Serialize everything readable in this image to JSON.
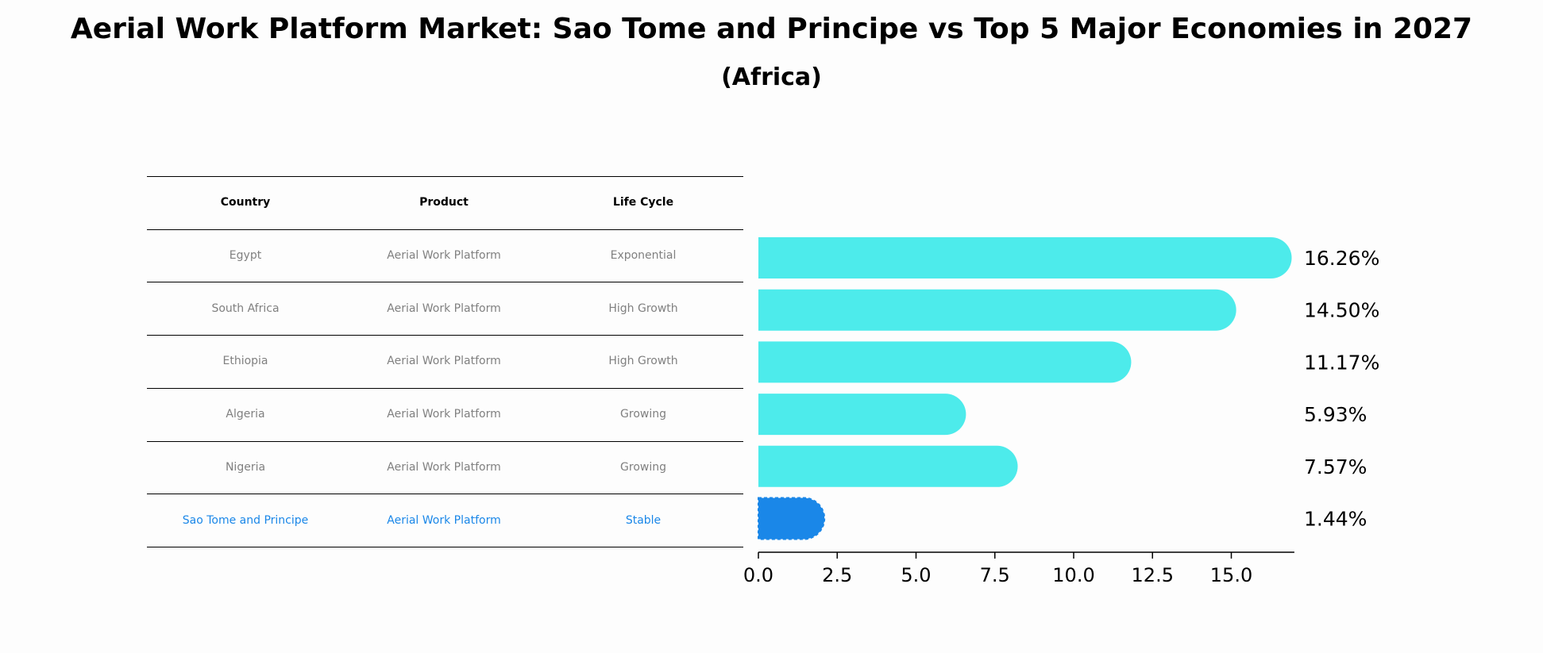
{
  "title": "Aerial Work Platform Market: Sao Tome and Principe vs Top 5 Major Economies in 2027",
  "subtitle": "(Africa)",
  "table": {
    "headers": [
      "Country",
      "Product",
      "Life Cycle"
    ],
    "rows": [
      [
        "Egypt",
        "Aerial Work Platform",
        "Exponential"
      ],
      [
        "South Africa",
        "Aerial Work Platform",
        "High Growth"
      ],
      [
        "Ethiopia",
        "Aerial Work Platform",
        "High Growth"
      ],
      [
        "Algeria",
        "Aerial Work Platform",
        "Growing"
      ],
      [
        "Nigeria",
        "Aerial Work Platform",
        "Growing"
      ],
      [
        "Sao Tome and Principe",
        "Aerial Work Platform",
        "Stable"
      ]
    ],
    "highlight_row": 5
  },
  "colors": {
    "bar": "#4debeb",
    "highlight": "#1a87e8",
    "table_text": "#808080"
  },
  "chart_data": {
    "type": "bar",
    "orientation": "horizontal",
    "categories": [
      "Egypt",
      "South Africa",
      "Ethiopia",
      "Algeria",
      "Nigeria",
      "Sao Tome and Principe"
    ],
    "values": [
      16.26,
      14.5,
      11.17,
      5.93,
      7.57,
      1.44
    ],
    "value_labels": [
      "16.26%",
      "14.50%",
      "11.17%",
      "5.93%",
      "7.57%",
      "1.44%"
    ],
    "highlight_index": 5,
    "xlim": [
      0,
      17
    ],
    "xticks": [
      "0.0",
      "2.5",
      "5.0",
      "7.5",
      "10.0",
      "12.5",
      "15.0"
    ],
    "xtick_values": [
      0,
      2.5,
      5,
      7.5,
      10,
      12.5,
      15
    ]
  }
}
